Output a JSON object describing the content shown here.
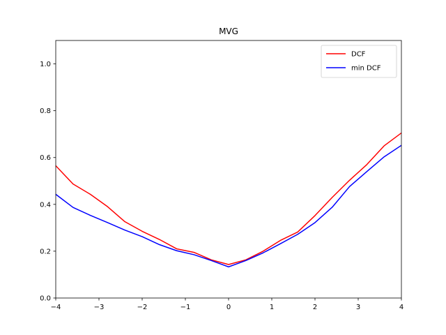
{
  "chart_data": {
    "type": "line",
    "title": "MVG",
    "xlabel": "",
    "ylabel": "",
    "xlim": [
      -4,
      4
    ],
    "ylim": [
      0,
      1.1
    ],
    "xticks": [
      -4,
      -3,
      -2,
      -1,
      0,
      1,
      2,
      3,
      4
    ],
    "xtick_labels": [
      "−4",
      "−3",
      "−2",
      "−1",
      "0",
      "1",
      "2",
      "3",
      "4"
    ],
    "yticks": [
      0.0,
      0.2,
      0.4,
      0.6,
      0.8,
      1.0
    ],
    "ytick_labels": [
      "0.0",
      "0.2",
      "0.4",
      "0.6",
      "0.8",
      "1.0"
    ],
    "grid": false,
    "legend_position": "top-right",
    "x": [
      -4.0,
      -3.6,
      -3.2,
      -2.8,
      -2.4,
      -2.0,
      -1.6,
      -1.2,
      -0.8,
      -0.4,
      0.0,
      0.4,
      0.8,
      1.2,
      1.6,
      2.0,
      2.4,
      2.8,
      3.2,
      3.6,
      4.0
    ],
    "series": [
      {
        "name": "DCF",
        "color": "#ff0000",
        "values": [
          0.565,
          0.487,
          0.443,
          0.39,
          0.326,
          0.285,
          0.25,
          0.21,
          0.195,
          0.163,
          0.143,
          0.163,
          0.2,
          0.246,
          0.282,
          0.352,
          0.43,
          0.503,
          0.57,
          0.65,
          0.705
        ]
      },
      {
        "name": "min DCF",
        "color": "#0000ff",
        "values": [
          0.443,
          0.387,
          0.353,
          0.322,
          0.29,
          0.262,
          0.228,
          0.202,
          0.185,
          0.16,
          0.133,
          0.16,
          0.193,
          0.232,
          0.272,
          0.322,
          0.388,
          0.476,
          0.54,
          0.603,
          0.652
        ]
      }
    ]
  }
}
